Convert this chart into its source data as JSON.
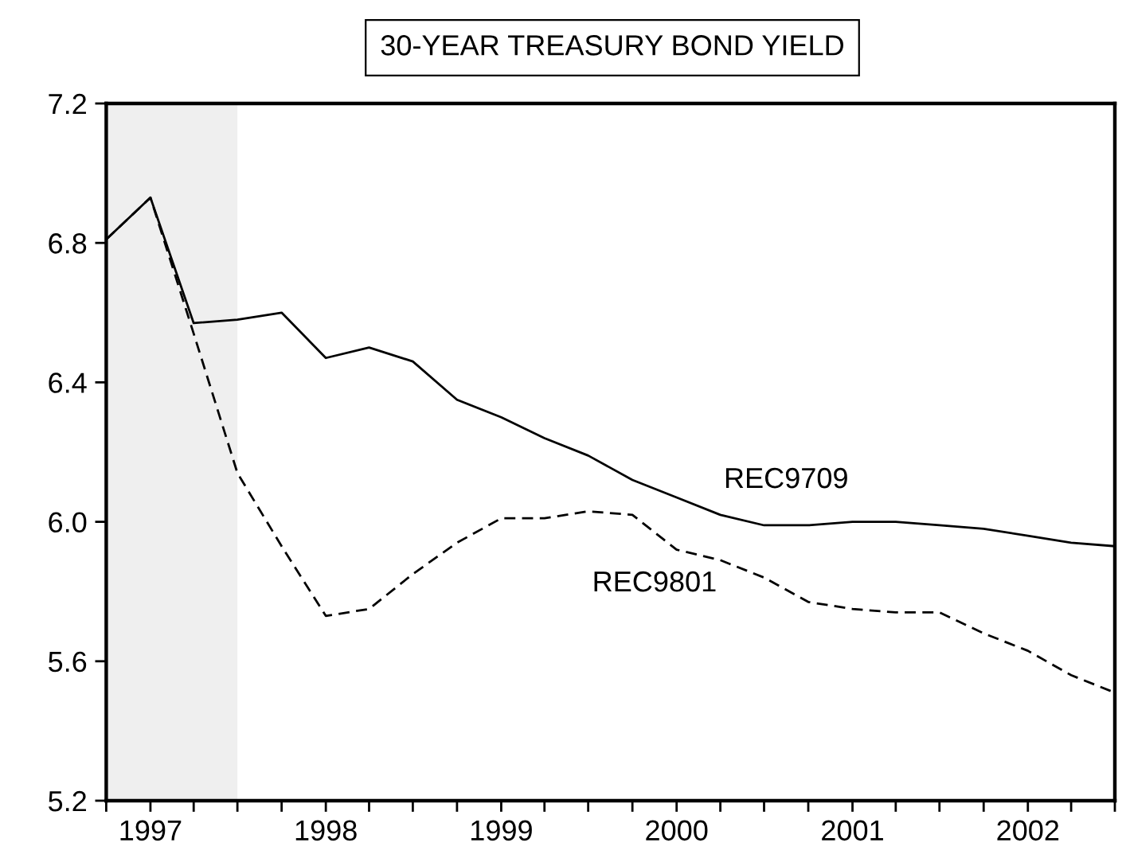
{
  "chart_data": {
    "type": "line",
    "title": "30-YEAR TREASURY BOND YIELD",
    "x": [
      "1996-10",
      "1997-01",
      "1997-04",
      "1997-07",
      "1997-10",
      "1998-01",
      "1998-04",
      "1998-07",
      "1998-10",
      "1999-01",
      "1999-04",
      "1999-07",
      "1999-10",
      "2000-01",
      "2000-04",
      "2000-07",
      "2000-10",
      "2001-01",
      "2001-04",
      "2001-07",
      "2001-10",
      "2002-01",
      "2002-04",
      "2002-07"
    ],
    "series": [
      {
        "name": "REC9709",
        "color": "#000000",
        "line_style": "solid",
        "values": [
          6.81,
          6.93,
          6.57,
          6.58,
          6.6,
          6.47,
          6.5,
          6.46,
          6.35,
          6.3,
          6.24,
          6.19,
          6.12,
          6.07,
          6.02,
          5.99,
          5.99,
          6.0,
          6.0,
          5.99,
          5.98,
          5.96,
          5.94,
          5.93
        ]
      },
      {
        "name": "REC9801",
        "color": "#000000",
        "line_style": "dashed",
        "values": [
          6.81,
          6.93,
          6.54,
          6.14,
          5.93,
          5.73,
          5.75,
          5.85,
          5.94,
          6.01,
          6.01,
          6.03,
          6.02,
          5.92,
          5.89,
          5.84,
          5.77,
          5.75,
          5.74,
          5.74,
          5.68,
          5.63,
          5.56,
          5.51
        ]
      }
    ],
    "xlim": [
      "1996-10",
      "2002-07"
    ],
    "xticks": [
      {
        "value": "1996-10",
        "label": null
      },
      {
        "value": "1997-01",
        "label": "1997"
      },
      {
        "value": "1997-04",
        "label": null
      },
      {
        "value": "1997-07",
        "label": null
      },
      {
        "value": "1997-10",
        "label": null
      },
      {
        "value": "1998-01",
        "label": "1998"
      },
      {
        "value": "1998-04",
        "label": null
      },
      {
        "value": "1998-07",
        "label": null
      },
      {
        "value": "1998-10",
        "label": null
      },
      {
        "value": "1999-01",
        "label": "1999"
      },
      {
        "value": "1999-04",
        "label": null
      },
      {
        "value": "1999-07",
        "label": null
      },
      {
        "value": "1999-10",
        "label": null
      },
      {
        "value": "2000-01",
        "label": "2000"
      },
      {
        "value": "2000-04",
        "label": null
      },
      {
        "value": "2000-07",
        "label": null
      },
      {
        "value": "2000-10",
        "label": null
      },
      {
        "value": "2001-01",
        "label": "2001"
      },
      {
        "value": "2001-04",
        "label": null
      },
      {
        "value": "2001-07",
        "label": null
      },
      {
        "value": "2001-10",
        "label": null
      },
      {
        "value": "2002-01",
        "label": "2002"
      },
      {
        "value": "2002-04",
        "label": null
      },
      {
        "value": "2002-07",
        "label": null
      }
    ],
    "ylim": [
      5.2,
      7.2
    ],
    "yticks": [
      {
        "value": 5.2,
        "label": "5.2"
      },
      {
        "value": 5.6,
        "label": "5.6"
      },
      {
        "value": 6.0,
        "label": "6.0"
      },
      {
        "value": 6.4,
        "label": "6.4"
      },
      {
        "value": 6.8,
        "label": "6.8"
      },
      {
        "value": 7.2,
        "label": "7.2"
      }
    ],
    "bands": [
      {
        "axis": "x",
        "from": "1996-10",
        "to": "1997-07",
        "color": "#efefef"
      }
    ],
    "grid": false,
    "legend": false,
    "marker": "none"
  }
}
